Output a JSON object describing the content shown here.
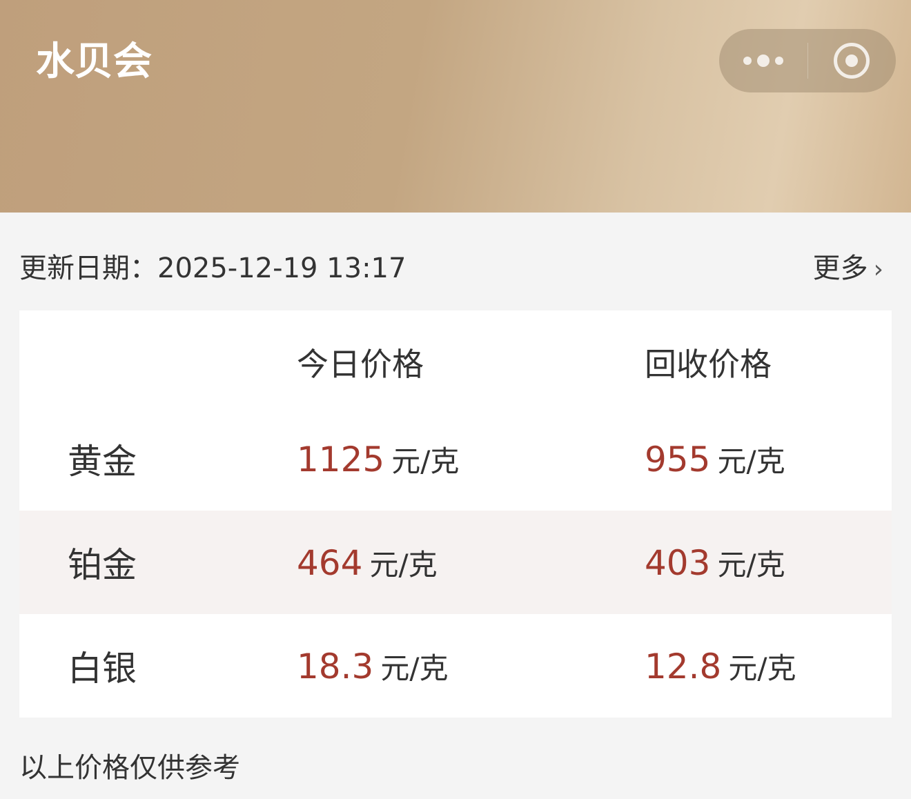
{
  "app": {
    "title": "水贝会",
    "icons": [
      "more-dots-icon",
      "close-target-icon"
    ]
  },
  "update": {
    "label": "更新日期：",
    "datetime": "2025-12-19 13:17",
    "more": "更多"
  },
  "table": {
    "headers": [
      "",
      "今日价格",
      "回收价格"
    ],
    "unit": "元/克",
    "rows": [
      {
        "metal": "黄金",
        "today": "1125",
        "recycle": "955"
      },
      {
        "metal": "铂金",
        "today": "464",
        "recycle": "403"
      },
      {
        "metal": "白银",
        "today": "18.3",
        "recycle": "12.8"
      }
    ]
  },
  "note": "以上价格仅供参考",
  "colors": {
    "price": "#a33a2e",
    "header": "#c3a682"
  }
}
